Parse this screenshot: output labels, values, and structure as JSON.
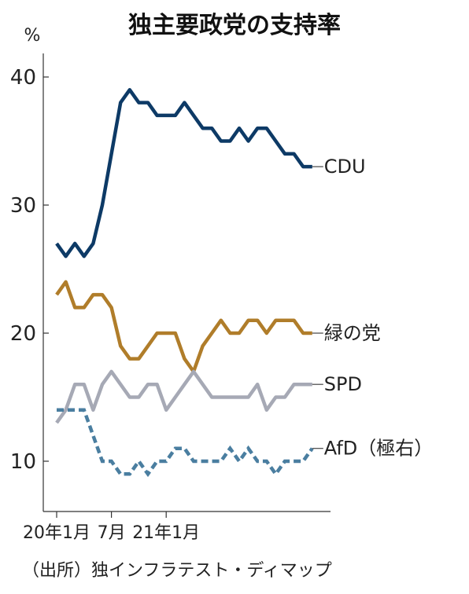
{
  "title": "独主要政党の支持率",
  "source": "（出所）独インフラテスト・ディマップ",
  "chart_data": {
    "type": "line",
    "title": "独主要政党の支持率",
    "ylabel": "%",
    "ylim": [
      5,
      41
    ],
    "yticks": [
      10,
      20,
      30,
      40
    ],
    "x_tick_labels": [
      "20年1月",
      "7月",
      "21年1月"
    ],
    "x_tick_index": [
      0,
      6,
      12
    ],
    "x_count": 29,
    "grid": false,
    "legend": "labels at line ends (right)",
    "series": [
      {
        "name": "CDU",
        "color": "#0d3a66",
        "dash": "solid",
        "values": [
          27,
          26,
          27,
          26,
          27,
          30,
          34,
          38,
          39,
          38,
          38,
          37,
          37,
          37,
          38,
          37,
          36,
          36,
          35,
          35,
          36,
          35,
          36,
          36,
          35,
          34,
          34,
          33,
          33
        ]
      },
      {
        "name": "緑の党",
        "color": "#b07d2a",
        "dash": "solid",
        "values": [
          23,
          24,
          22,
          22,
          23,
          23,
          22,
          19,
          18,
          18,
          19,
          20,
          20,
          20,
          18,
          17,
          19,
          20,
          21,
          20,
          20,
          21,
          21,
          20,
          21,
          21,
          21,
          20,
          20
        ]
      },
      {
        "name": "SPD",
        "color": "#a6a9b5",
        "dash": "solid",
        "values": [
          13,
          14,
          16,
          16,
          14,
          16,
          17,
          16,
          15,
          15,
          16,
          16,
          14,
          15,
          16,
          17,
          16,
          15,
          15,
          15,
          15,
          15,
          16,
          14,
          15,
          15,
          16,
          16,
          16
        ]
      },
      {
        "name": "AfD（極右）",
        "color": "#4a7ea0",
        "dash": "dashed",
        "values": [
          14,
          14,
          14,
          14,
          12,
          10,
          10,
          9,
          9,
          10,
          9,
          10,
          10,
          11,
          11,
          10,
          10,
          10,
          10,
          11,
          10,
          11,
          10,
          10,
          9,
          10,
          10,
          10,
          11
        ]
      }
    ]
  }
}
